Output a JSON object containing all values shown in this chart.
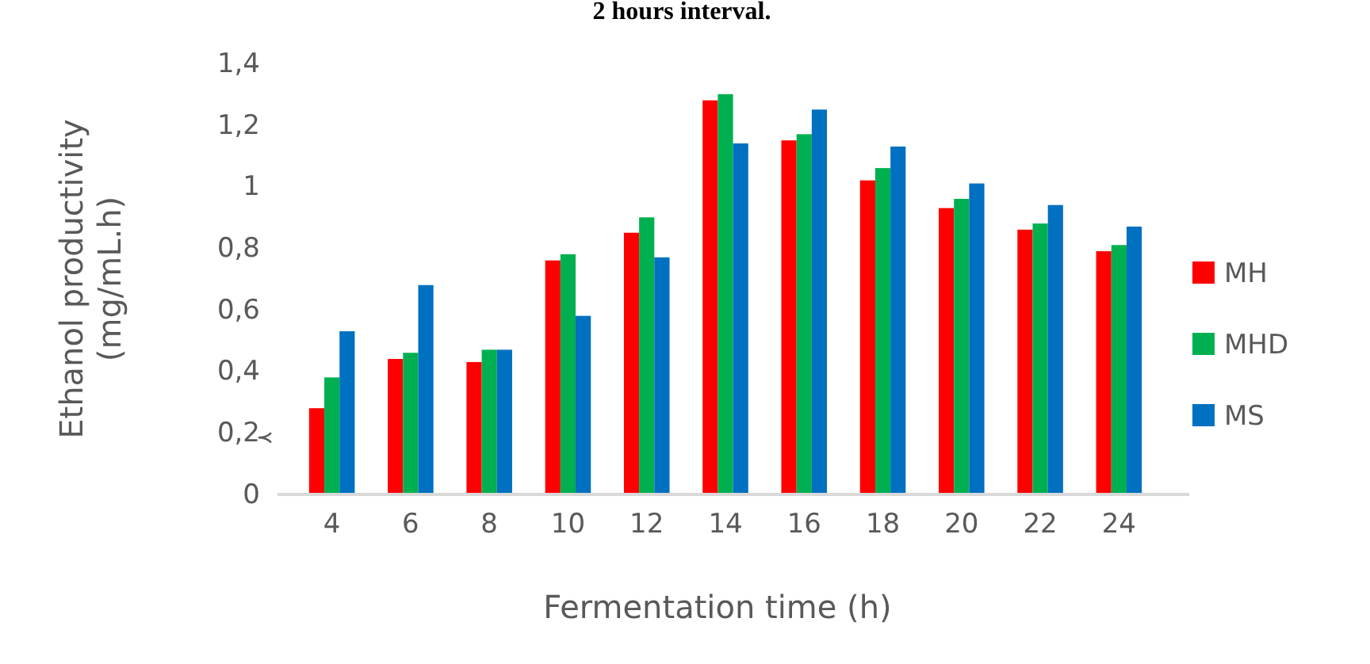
{
  "chart_data": {
    "type": "bar",
    "title": "2 hours interval.",
    "xlabel": "Fermentation time (h)",
    "ylabel": "Ethanol productivity (mg/mL.h)",
    "categories": [
      "4",
      "6",
      "8",
      "10",
      "12",
      "14",
      "16",
      "18",
      "20",
      "22",
      "24"
    ],
    "series": [
      {
        "name": "MH",
        "color": "#ff0000",
        "values": [
          0.28,
          0.44,
          0.43,
          0.76,
          0.85,
          1.28,
          1.15,
          1.02,
          0.93,
          0.86,
          0.79
        ]
      },
      {
        "name": "MHD",
        "color": "#00b050",
        "values": [
          0.38,
          0.46,
          0.47,
          0.78,
          0.9,
          1.3,
          1.17,
          1.06,
          0.96,
          0.88,
          0.81
        ]
      },
      {
        "name": "MS",
        "color": "#0070c0",
        "values": [
          0.53,
          0.68,
          0.47,
          0.58,
          0.77,
          1.14,
          1.25,
          1.13,
          1.01,
          0.94,
          0.87
        ]
      }
    ],
    "ylim": [
      0,
      1.4
    ],
    "yticks": [
      0,
      {
        "value": 0.2,
        "label": "0,2"
      },
      {
        "value": 0.4,
        "label": "0,4"
      },
      {
        "value": 0.6,
        "label": "0,6"
      },
      {
        "value": 0.8,
        "label": "0,8"
      },
      1,
      {
        "value": 1.2,
        "label": "1,2"
      },
      {
        "value": 1.4,
        "label": "1,4"
      }
    ],
    "grid": false,
    "legend": "right"
  }
}
